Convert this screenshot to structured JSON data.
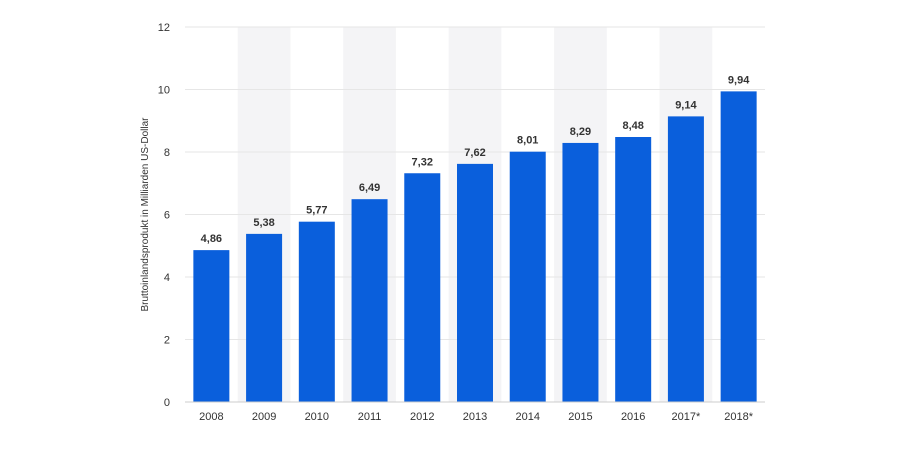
{
  "chart_data": {
    "type": "bar",
    "categories": [
      "2008",
      "2009",
      "2010",
      "2011",
      "2012",
      "2013",
      "2014",
      "2015",
      "2016",
      "2017*",
      "2018*"
    ],
    "values": [
      4.86,
      5.38,
      5.77,
      6.49,
      7.32,
      7.62,
      8.01,
      8.29,
      8.48,
      9.14,
      9.94
    ],
    "value_labels": [
      "4,86",
      "5,38",
      "5,77",
      "6,49",
      "7,32",
      "7,62",
      "8,01",
      "8,29",
      "8,48",
      "9,14",
      "9,94"
    ],
    "title": "",
    "xlabel": "",
    "ylabel": "Bruttoinlandsprodukt in Milliarden US-Dollar",
    "ylim": [
      0,
      12
    ],
    "yticks": [
      0,
      2,
      4,
      6,
      8,
      10,
      12
    ],
    "ytick_labels": [
      "0",
      "2",
      "4",
      "6",
      "8",
      "10",
      "12"
    ],
    "grid": true,
    "legend": "none",
    "colors": {
      "bar": "#0a5fdc",
      "grid": "#e6e6e6",
      "alt_band": "#f4f4f6",
      "text": "#333333",
      "axis": "#cccccc"
    }
  }
}
